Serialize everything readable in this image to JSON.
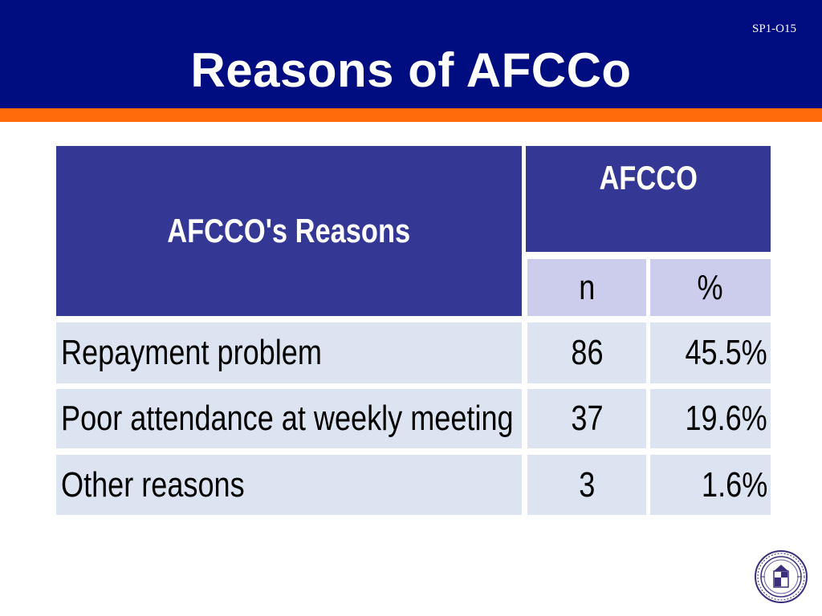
{
  "slide": {
    "code": "SP1-O15",
    "title": "Reasons of AFCCo"
  },
  "table": {
    "header": {
      "reasons_label": "AFCCO's Reasons",
      "group_label": "AFCCO",
      "n_label": "n",
      "pct_label": "%"
    },
    "rows": [
      {
        "reason": "Repayment problem",
        "n": "86",
        "pct": "45.5%"
      },
      {
        "reason": "Poor attendance at weekly meeting",
        "n": "37",
        "pct": "19.6%"
      },
      {
        "reason": "Other reasons",
        "n": "3",
        "pct": "1.6%"
      }
    ]
  },
  "colors": {
    "header_bg": "#000d80",
    "accent_stripe": "#ff6a0a",
    "table_header_dark": "#353795",
    "table_header_light": "#cccdec",
    "table_body": "#dce3f1"
  },
  "icons": {
    "seal": "university-seal-icon"
  }
}
